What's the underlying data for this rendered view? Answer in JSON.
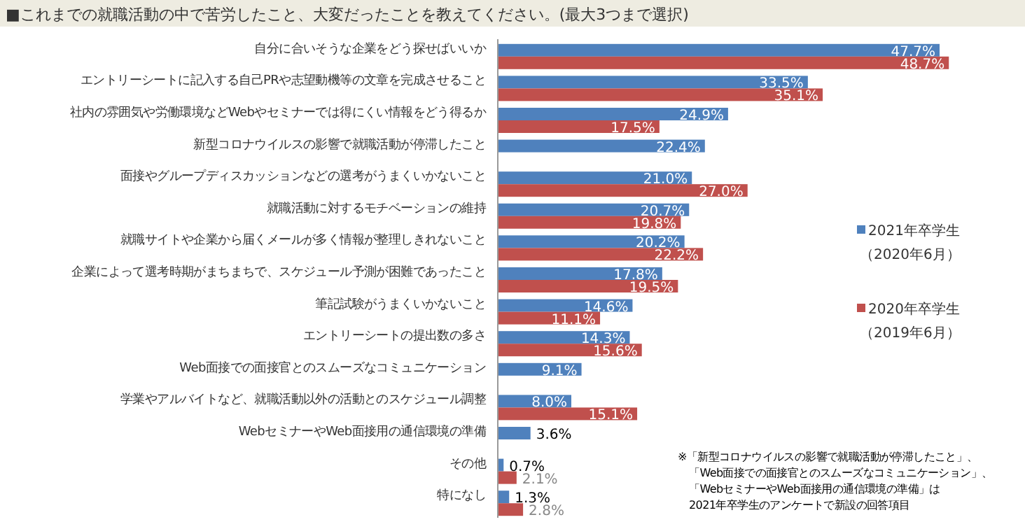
{
  "chart_data": {
    "type": "bar",
    "orientation": "horizontal",
    "title": "■これまでの就職活動の中で苦労したこと、大変だったことを教えてください。(最大3つまで選択)",
    "categories": [
      "自分に合いそうな企業をどう探せばいいか",
      "エントリーシートに記入する自己PRや志望動機等の文章を完成させること",
      "社内の雰囲気や労働環境などWebやセミナーでは得にくい情報をどう得るか",
      "新型コロナウイルスの影響で就職活動が停滞したこと",
      "面接やグループディスカッションなどの選考がうまくいかないこと",
      "就職活動に対するモチベーションの維持",
      "就職サイトや企業から届くメールが多く情報が整理しきれないこと",
      "企業によって選考時期がまちまちで、スケジュール予測が困難であったこと",
      "筆記試験がうまくいかないこと",
      "エントリーシートの提出数の多さ",
      "Web面接での面接官とのスムーズなコミュニケーション",
      "学業やアルバイトなど、就職活動以外の活動とのスケジュール調整",
      "WebセミナーやWeb面接用の通信環境の準備",
      "その他",
      "特になし"
    ],
    "series": [
      {
        "name": "2021年卒学生（2020年6月）",
        "color": "#4f81bd",
        "values": [
          47.7,
          33.5,
          24.9,
          22.4,
          21.0,
          20.7,
          20.2,
          17.8,
          14.6,
          14.3,
          9.1,
          8.0,
          3.6,
          0.7,
          1.3
        ],
        "value_labels": [
          "47.7%",
          "33.5%",
          "24.9%",
          "22.4%",
          "21.0%",
          "20.7%",
          "20.2%",
          "17.8%",
          "14.6%",
          "14.3%",
          "9.1%",
          "8.0%",
          "3.6%",
          "0.7%",
          "1.3%"
        ]
      },
      {
        "name": "2020年卒学生（2019年6月）",
        "color": "#c0504d",
        "values": [
          48.7,
          35.1,
          17.5,
          null,
          27.0,
          19.8,
          22.2,
          19.5,
          11.1,
          15.6,
          null,
          15.1,
          null,
          2.1,
          2.8
        ],
        "value_labels": [
          "48.7%",
          "35.1%",
          "17.5%",
          null,
          "27.0%",
          "19.8%",
          "22.2%",
          "19.5%",
          "11.1%",
          "15.6%",
          null,
          "15.1%",
          null,
          "2.1%",
          "2.8%"
        ]
      }
    ],
    "legend": "right",
    "annotations": [
      "※「新型コロナウイルスの影響で就職活動が停滞したこと」、",
      "「Web面接での面接官とのスムーズなコミュニケーション」、",
      "「WebセミナーやWeb面接用の通信環境の準備」は",
      "2021年卒学生のアンケートで新設の回答項目"
    ]
  }
}
